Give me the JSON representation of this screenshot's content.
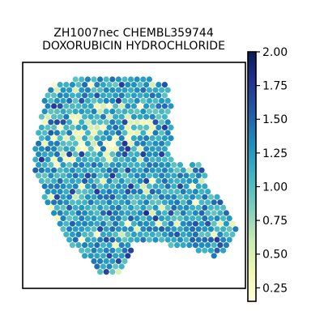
{
  "chart_data": {
    "type": "heatmap",
    "title_lines": [
      "ZH1007nec CHEMBL359744",
      "DOXORUBICIN HYDROCHLORIDE"
    ],
    "xlabel": "",
    "ylabel": "",
    "colorbar": {
      "min": 0.15,
      "max": 2.0,
      "ticks": [
        0.25,
        0.5,
        0.75,
        1.0,
        1.25,
        1.5,
        1.75,
        2.0
      ],
      "tick_labels": [
        "0.25",
        "0.50",
        "0.75",
        "1.00",
        "1.25",
        "1.50",
        "1.75",
        "2.00"
      ],
      "colormap": "YlGnBu",
      "stops": [
        "#ffffd9",
        "#edf8b1",
        "#c7e9b4",
        "#7fcdbb",
        "#41b6c4",
        "#1d91c0",
        "#225ea8",
        "#253494",
        "#081d58"
      ]
    },
    "grid": false,
    "legend": "none"
  }
}
